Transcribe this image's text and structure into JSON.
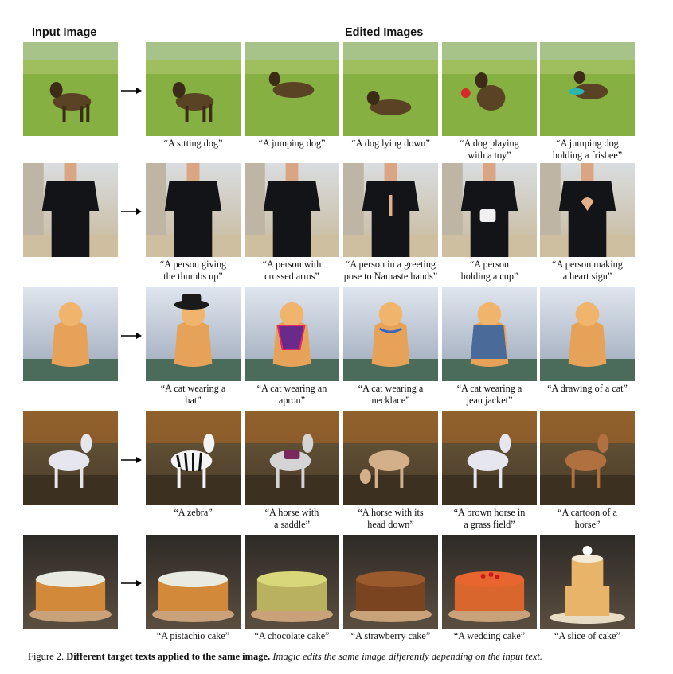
{
  "headers": {
    "input": "Input Image",
    "edited": "Edited Images"
  },
  "rows": [
    {
      "subject": "dog",
      "captions": [
        "“A sitting dog”",
        "“A jumping dog”",
        "“A dog lying down”",
        "“A dog playing\nwith a toy”",
        "“A jumping dog\nholding a frisbee”"
      ]
    },
    {
      "subject": "person",
      "captions": [
        "“A person giving\nthe thumbs up”",
        "“A person with\ncrossed arms”",
        "“A person in a greeting\npose to Namaste hands”",
        "“A person\nholding a cup”",
        "“A person making\na heart sign”"
      ]
    },
    {
      "subject": "cat",
      "captions": [
        "“A cat wearing a\nhat”",
        "“A cat wearing an\napron”",
        "“A cat wearing a\nnecklace”",
        "“A cat wearing a\njean jacket”",
        "“A drawing of a cat”"
      ]
    },
    {
      "subject": "horse",
      "captions": [
        "“A zebra”",
        "“A horse with\na saddle”",
        "“A horse with its\nhead down”",
        "“A brown horse in\na grass field”",
        "“A cartoon of a\nhorse”"
      ]
    },
    {
      "subject": "cake",
      "captions": [
        "“A pistachio cake”",
        "“A chocolate cake”",
        "“A strawberry cake”",
        "“A wedding cake”",
        "“A slice of cake”"
      ]
    }
  ],
  "figure_caption": {
    "label": "Figure 2.",
    "bold": "Different target texts applied to the same image.",
    "italic": "Imagic edits the same image differently depending on the input text."
  }
}
